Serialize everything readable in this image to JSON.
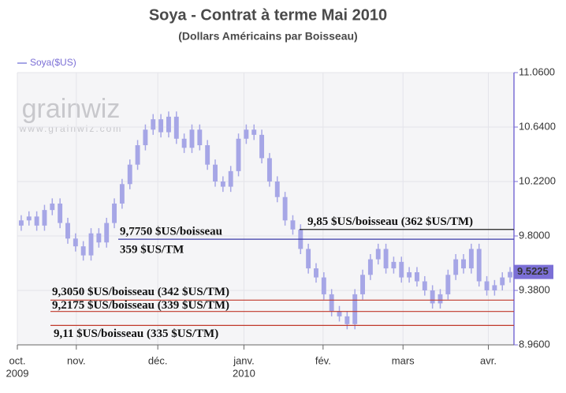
{
  "chart_data": {
    "type": "candlestick",
    "title": "Soya - Contrat à terme Mai 2010",
    "subtitle": "(Dollars Américains par Boisseau)",
    "legend": "Soya($US)",
    "color": "#a6a6e6",
    "axis_color": "#7b6fd6",
    "watermark": "grainwiz",
    "watermark_url": "www.grainwiz.com",
    "ylim": [
      8.96,
      11.06
    ],
    "yticks": [
      {
        "value": 8.96,
        "label": "8.9600"
      },
      {
        "value": 9.38,
        "label": "9.3800"
      },
      {
        "value": 9.8,
        "label": "9.8000"
      },
      {
        "value": 10.22,
        "label": "10.2200"
      },
      {
        "value": 10.64,
        "label": "10.6400"
      },
      {
        "value": 11.06,
        "label": "11.0600"
      }
    ],
    "xticks": [
      {
        "value": 0,
        "label": "oct.",
        "year": "2009"
      },
      {
        "value": 7.6,
        "label": "nov."
      },
      {
        "value": 18.1,
        "label": "déc."
      },
      {
        "value": 29.2,
        "label": "janv.",
        "year": "2010"
      },
      {
        "value": 39.4,
        "label": "fév."
      },
      {
        "value": 49.7,
        "label": "mars"
      },
      {
        "value": 60.7,
        "label": "avr."
      }
    ],
    "grid": true,
    "last_value": 9.5225,
    "open": [
      9.88,
      9.92,
      9.95,
      9.88,
      10.0,
      10.05,
      9.9,
      9.78,
      9.72,
      9.65,
      9.82,
      9.75,
      9.9,
      10.05,
      10.2,
      10.35,
      10.5,
      10.62,
      10.7,
      10.6,
      10.72,
      10.55,
      10.48,
      10.62,
      10.5,
      10.35,
      10.22,
      10.18,
      10.3,
      10.55,
      10.62,
      10.58,
      10.4,
      10.22,
      10.1,
      9.92,
      9.85,
      9.7,
      9.55,
      9.48,
      9.35,
      9.22,
      9.18,
      9.12,
      9.35,
      9.5,
      9.62,
      9.7,
      9.55,
      9.6,
      9.48,
      9.52,
      9.45,
      9.38,
      9.28,
      9.35,
      9.5,
      9.62,
      9.55,
      9.7,
      9.45,
      9.38,
      9.42,
      9.48
    ],
    "high": [
      9.96,
      9.99,
      9.99,
      10.04,
      10.09,
      10.09,
      9.94,
      9.82,
      9.76,
      9.86,
      9.86,
      9.94,
      10.09,
      10.24,
      10.39,
      10.54,
      10.66,
      10.74,
      10.74,
      10.76,
      10.76,
      10.59,
      10.66,
      10.66,
      10.54,
      10.39,
      10.26,
      10.34,
      10.59,
      10.66,
      10.66,
      10.62,
      10.44,
      10.26,
      10.14,
      9.96,
      9.89,
      9.74,
      9.59,
      9.52,
      9.39,
      9.26,
      9.22,
      9.39,
      9.54,
      9.66,
      9.74,
      9.74,
      9.64,
      9.64,
      9.56,
      9.56,
      9.49,
      9.42,
      9.39,
      9.54,
      9.66,
      9.66,
      9.74,
      9.74,
      9.49,
      9.46,
      9.52,
      9.56
    ],
    "low": [
      9.84,
      9.88,
      9.84,
      9.84,
      9.96,
      9.86,
      9.74,
      9.68,
      9.61,
      9.61,
      9.71,
      9.71,
      9.86,
      10.01,
      10.16,
      10.31,
      10.46,
      10.58,
      10.56,
      10.56,
      10.51,
      10.44,
      10.44,
      10.46,
      10.31,
      10.18,
      10.14,
      10.14,
      10.26,
      10.51,
      10.54,
      10.36,
      10.18,
      10.06,
      9.88,
      9.81,
      9.66,
      9.51,
      9.44,
      9.31,
      9.18,
      9.14,
      9.08,
      9.08,
      9.31,
      9.46,
      9.58,
      9.51,
      9.51,
      9.44,
      9.44,
      9.41,
      9.34,
      9.24,
      9.24,
      9.31,
      9.46,
      9.51,
      9.51,
      9.41,
      9.34,
      9.34,
      9.38,
      9.44
    ],
    "close": [
      9.92,
      9.95,
      9.88,
      10.0,
      10.05,
      9.9,
      9.78,
      9.72,
      9.65,
      9.82,
      9.75,
      9.9,
      10.05,
      10.2,
      10.35,
      10.5,
      10.62,
      10.7,
      10.6,
      10.72,
      10.55,
      10.48,
      10.62,
      10.5,
      10.35,
      10.22,
      10.18,
      10.3,
      10.55,
      10.62,
      10.58,
      10.4,
      10.22,
      10.1,
      9.92,
      9.85,
      9.7,
      9.55,
      9.48,
      9.35,
      9.22,
      9.18,
      9.12,
      9.35,
      9.5,
      9.62,
      9.7,
      9.55,
      9.6,
      9.48,
      9.52,
      9.45,
      9.38,
      9.28,
      9.35,
      9.5,
      9.62,
      9.55,
      9.7,
      9.45,
      9.38,
      9.42,
      9.48,
      9.5225
    ],
    "annotations": [
      {
        "value": 9.85,
        "text": "9,85 $US/boisseau (362 $US/TM)",
        "color": "#222222"
      },
      {
        "value": 9.775,
        "text": "9,7750 $US/boisseau",
        "text2": "359 $US/TM",
        "color": "#3b3ba8"
      },
      {
        "value": 9.305,
        "text": "9,3050 $US/boisseau (342 $US/TM)",
        "color": "#c0392b"
      },
      {
        "value": 9.2175,
        "text": "9,2175 $US/boisseau (339 $US/TM)",
        "color": "#c0392b"
      },
      {
        "value": 9.11,
        "text": "9,11 $US/boisseau (335 $US/TM)",
        "color": "#c0392b"
      }
    ]
  }
}
